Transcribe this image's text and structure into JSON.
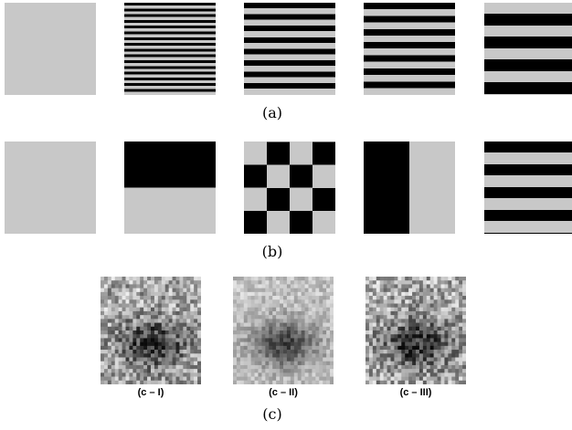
{
  "figure": {
    "row_labels": [
      "(a)",
      "(b)",
      "(c)"
    ],
    "image_labels": [
      "(c – I)",
      "(c – II)",
      "(c – III)"
    ]
  }
}
